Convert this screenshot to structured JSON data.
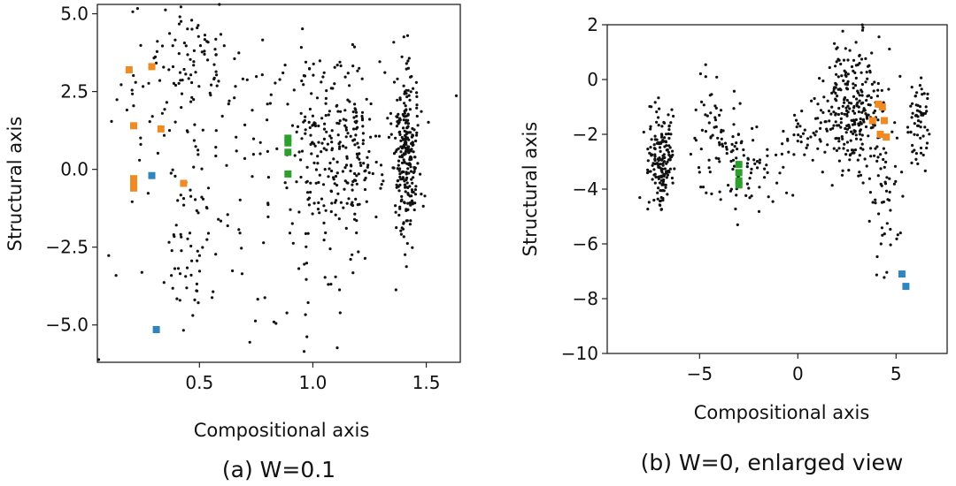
{
  "chart_data": [
    {
      "type": "scatter",
      "caption": "(a) W=0.1",
      "xlabel": "Compositional axis",
      "ylabel": "Structural axis",
      "xlim": [
        0.05,
        1.65
      ],
      "ylim": [
        -6.2,
        5.3
      ],
      "xticks": [
        "0.5",
        "1.0",
        "1.5"
      ],
      "xtick_values": [
        0.5,
        1.0,
        1.5
      ],
      "yticks": [
        "5.0",
        "2.5",
        "0.0",
        "−2.5",
        "−5.0"
      ],
      "ytick_values": [
        5.0,
        2.5,
        0.0,
        -2.5,
        -5.0
      ],
      "background_point_color": "#111111",
      "series": [
        {
          "color": "#f08a24",
          "points": [
            [
              0.19,
              3.2
            ],
            [
              0.29,
              3.3
            ],
            [
              0.21,
              1.4
            ],
            [
              0.33,
              1.3
            ],
            [
              0.21,
              -0.3
            ],
            [
              0.21,
              -0.5
            ],
            [
              0.21,
              -0.6
            ],
            [
              0.43,
              -0.45
            ]
          ]
        },
        {
          "color": "#2e86c1",
          "points": [
            [
              0.29,
              -0.2
            ],
            [
              0.31,
              -5.15
            ]
          ]
        },
        {
          "color": "#2ca02c",
          "points": [
            [
              0.89,
              1.0
            ],
            [
              0.89,
              0.85
            ],
            [
              0.89,
              0.55
            ],
            [
              0.89,
              -0.15
            ]
          ]
        }
      ]
    },
    {
      "type": "scatter",
      "caption": "(b) W=0, enlarged view",
      "xlabel": "Compositional axis",
      "ylabel": "Structural axis",
      "xlim": [
        -9.7,
        7.6
      ],
      "ylim": [
        -10,
        2
      ],
      "xticks": [
        "−5",
        "0",
        "5"
      ],
      "xtick_values": [
        -5,
        0,
        5
      ],
      "yticks": [
        "2",
        "0",
        "−2",
        "−4",
        "−6",
        "−8",
        "−10"
      ],
      "ytick_values": [
        2,
        0,
        -2,
        -4,
        -6,
        -8,
        -10
      ],
      "background_point_color": "#111111",
      "series": [
        {
          "color": "#f08a24",
          "points": [
            [
              3.8,
              -1.5
            ],
            [
              4.1,
              -0.9
            ],
            [
              4.3,
              -1.0
            ],
            [
              4.4,
              -1.5
            ],
            [
              4.2,
              -2.0
            ],
            [
              4.5,
              -2.1
            ]
          ]
        },
        {
          "color": "#2e86c1",
          "points": [
            [
              5.3,
              -7.1
            ],
            [
              5.5,
              -7.55
            ]
          ]
        },
        {
          "color": "#2ca02c",
          "points": [
            [
              -3.0,
              -3.1
            ],
            [
              -3.0,
              -3.4
            ],
            [
              -3.0,
              -3.7
            ],
            [
              -3.0,
              -3.85
            ]
          ]
        }
      ]
    }
  ]
}
